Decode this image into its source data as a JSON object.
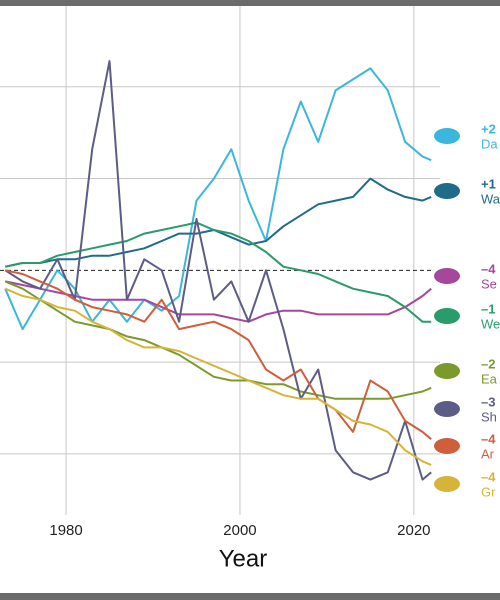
{
  "chart_data": {
    "type": "line",
    "x_label": "Year",
    "x": [
      1973,
      1975,
      1977,
      1979,
      1981,
      1983,
      1985,
      1987,
      1989,
      1991,
      1993,
      1995,
      1997,
      1999,
      2001,
      2003,
      2005,
      2007,
      2009,
      2011,
      2013,
      2015,
      2017,
      2019,
      2021,
      2022
    ],
    "xlim": [
      1972.4,
      2026
    ],
    "xticks": [
      1980,
      2000,
      2020
    ],
    "ylim": [
      -68,
      72
    ],
    "yticks": [
      -50,
      -25,
      25,
      50
    ],
    "baseline": 0,
    "grid": true,
    "series": [
      {
        "name": "Da",
        "change_label": "+2",
        "color": "#3bb6dc",
        "values": [
          -5,
          -16,
          -8,
          0,
          -5,
          -14,
          -8,
          -14,
          -8,
          -11,
          -7,
          19,
          25,
          33,
          19,
          8,
          33,
          46,
          35,
          49,
          52,
          55,
          49,
          35,
          31,
          30
        ]
      },
      {
        "name": "Wa",
        "change_label": "+1",
        "color": "#1f6b8a",
        "values": [
          1,
          2,
          2,
          3,
          3,
          4,
          4,
          5,
          6,
          8,
          10,
          10,
          11,
          9,
          7,
          8,
          12,
          15,
          18,
          19,
          20,
          25,
          22,
          20,
          19,
          20
        ]
      },
      {
        "name": "Se",
        "change_label": "–4",
        "color": "#a6479b",
        "values": [
          -3,
          -4,
          -5,
          -6,
          -7,
          -8,
          -8,
          -8,
          -8,
          -10,
          -12,
          -12,
          -12,
          -13,
          -14,
          -12,
          -11,
          -11,
          -12,
          -12,
          -12,
          -12,
          -12,
          -10,
          -7,
          -5
        ]
      },
      {
        "name": "We",
        "change_label": "–1",
        "color": "#2a9b6a",
        "values": [
          1,
          2,
          2,
          4,
          5,
          6,
          7,
          8,
          10,
          11,
          12,
          13,
          11,
          10,
          8,
          5,
          1,
          0,
          -1,
          -3,
          -5,
          -6,
          -7,
          -10,
          -14,
          -14
        ]
      },
      {
        "name": "Ea",
        "change_label": "–2",
        "color": "#7b9a2c",
        "values": [
          -3,
          -5,
          -8,
          -11,
          -14,
          -15,
          -16,
          -18,
          -19,
          -21,
          -23,
          -26,
          -29,
          -30,
          -30,
          -31,
          -31,
          -33,
          -34,
          -35,
          -35,
          -35,
          -35,
          -34,
          -33,
          -32
        ]
      },
      {
        "name": "Sh",
        "change_label": "–3",
        "color": "#5c5c86",
        "values": [
          0,
          -3,
          -5,
          3,
          -8,
          33,
          57,
          -8,
          3,
          0,
          -14,
          14,
          -8,
          -3,
          -14,
          0,
          -16,
          -35,
          -27,
          -49,
          -55,
          -57,
          -55,
          -41,
          -57,
          -55
        ]
      },
      {
        "name": "Ar",
        "change_label": "–4",
        "color": "#cf5e3b",
        "values": [
          0,
          -1,
          -3,
          -5,
          -8,
          -10,
          -11,
          -12,
          -14,
          -8,
          -16,
          -15,
          -14,
          -16,
          -19,
          -27,
          -30,
          -27,
          -35,
          -38,
          -44,
          -30,
          -33,
          -41,
          -44,
          -46
        ]
      },
      {
        "name": "Gr",
        "change_label": "–4",
        "color": "#d6b43a",
        "values": [
          -5,
          -7,
          -8,
          -10,
          -11,
          -14,
          -16,
          -19,
          -21,
          -21,
          -22,
          -24,
          -26,
          -28,
          -30,
          -32,
          -34,
          -35,
          -35,
          -38,
          -41,
          -42,
          -44,
          -49,
          -52,
          -53
        ]
      }
    ]
  }
}
